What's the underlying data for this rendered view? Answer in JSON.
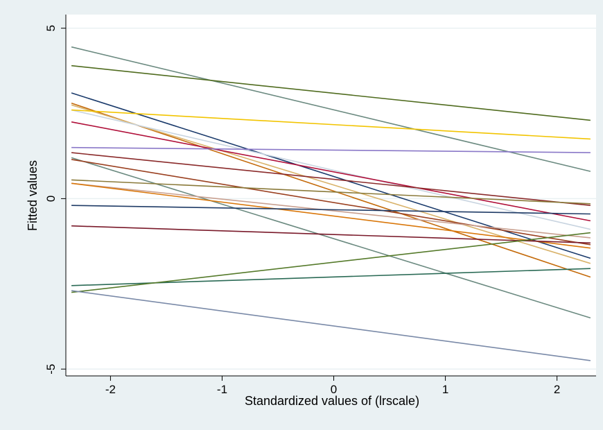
{
  "chart_data": {
    "type": "line",
    "title": "",
    "xlabel": "Standardized values of (lrscale)",
    "ylabel": "Fitted values",
    "xlim": [
      -2.4,
      2.35
    ],
    "ylim": [
      -5.2,
      5.4
    ],
    "xticks": [
      -2,
      -1,
      0,
      1,
      2
    ],
    "yticks": [
      -5,
      0,
      5
    ],
    "xtick_labels": [
      "-2",
      "-1",
      "0",
      "1",
      "2"
    ],
    "ytick_labels": [
      "-5",
      "0",
      "5"
    ],
    "grid": true,
    "legend": "none",
    "series": [
      {
        "color": "#6b8a80",
        "x": [
          -2.35,
          2.3
        ],
        "y": [
          4.45,
          0.8
        ]
      },
      {
        "color": "#4f6b1e",
        "x": [
          -2.35,
          2.3
        ],
        "y": [
          3.9,
          2.3
        ]
      },
      {
        "color": "#1a3a6b",
        "x": [
          -2.35,
          2.3
        ],
        "y": [
          3.1,
          -1.75
        ]
      },
      {
        "color": "#c46a0a",
        "x": [
          -2.35,
          2.3
        ],
        "y": [
          2.8,
          -2.3
        ]
      },
      {
        "color": "#d9b36b",
        "x": [
          -2.35,
          2.3
        ],
        "y": [
          2.75,
          -1.9
        ]
      },
      {
        "color": "#c8d4e0",
        "x": [
          -2.35,
          2.3
        ],
        "y": [
          2.6,
          -0.9
        ]
      },
      {
        "color": "#f2c400",
        "x": [
          -2.35,
          2.3
        ],
        "y": [
          2.6,
          1.75
        ]
      },
      {
        "color": "#b0103a",
        "x": [
          -2.35,
          2.3
        ],
        "y": [
          2.25,
          -0.65
        ]
      },
      {
        "color": "#8a78c8",
        "x": [
          -2.35,
          2.3
        ],
        "y": [
          1.5,
          1.35
        ]
      },
      {
        "color": "#8a2a2a",
        "x": [
          -2.35,
          2.3
        ],
        "y": [
          1.35,
          -0.2
        ]
      },
      {
        "color": "#6b8a80",
        "x": [
          -2.35,
          2.3
        ],
        "y": [
          1.2,
          -3.5
        ]
      },
      {
        "color": "#9a4020",
        "x": [
          -2.35,
          2.3
        ],
        "y": [
          1.15,
          -1.35
        ]
      },
      {
        "color": "#8a7a3a",
        "x": [
          -2.35,
          2.3
        ],
        "y": [
          0.55,
          -0.15
        ]
      },
      {
        "color": "#c9a090",
        "x": [
          -2.35,
          2.3
        ],
        "y": [
          0.45,
          -1.15
        ]
      },
      {
        "color": "#d9770a",
        "x": [
          -2.35,
          2.3
        ],
        "y": [
          0.45,
          -1.45
        ]
      },
      {
        "color": "#1f3b66",
        "x": [
          -2.35,
          2.3
        ],
        "y": [
          -0.2,
          -0.45
        ]
      },
      {
        "color": "#7a1a2a",
        "x": [
          -2.35,
          2.3
        ],
        "y": [
          -0.8,
          -1.3
        ]
      },
      {
        "color": "#2a6a55",
        "x": [
          -2.35,
          2.3
        ],
        "y": [
          -2.55,
          -2.05
        ]
      },
      {
        "color": "#557a2a",
        "x": [
          -2.35,
          2.3
        ],
        "y": [
          -2.75,
          -1.0
        ]
      },
      {
        "color": "#7a8aa8",
        "x": [
          -2.35,
          2.3
        ],
        "y": [
          -2.7,
          -4.75
        ]
      }
    ]
  }
}
